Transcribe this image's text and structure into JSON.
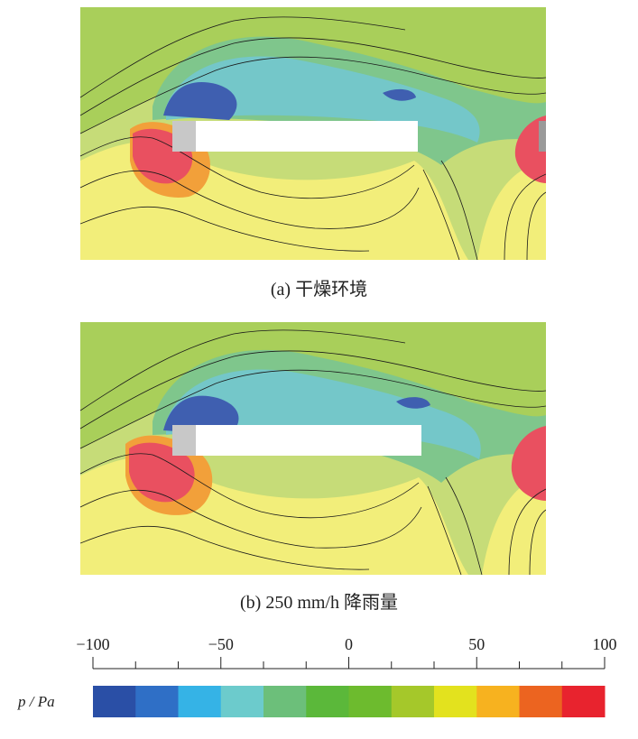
{
  "panels": [
    {
      "caption": "(a)  干燥环境"
    },
    {
      "caption": "(b)  250 mm/h 降雨量"
    }
  ],
  "colorbar": {
    "label": "p / Pa",
    "ticks": [
      "−100",
      "−50",
      "0",
      "50",
      "100"
    ],
    "colors": [
      "#2a4fa6",
      "#2f6fc6",
      "#35b3e6",
      "#6ccbcc",
      "#6cbf7a",
      "#5bb83a",
      "#6dbb2e",
      "#a5c82a",
      "#e3e21e",
      "#f7b21f",
      "#ec6420",
      "#e8232e"
    ]
  },
  "contour_colors": {
    "far_field": "#c6dc78",
    "upper_field": "#a9cf5a",
    "wake_band": "#7fc68c",
    "wake_inner": "#74c7c9",
    "suction": "#3f5fb0",
    "stagnation_rim": "#f2a03a",
    "stagnation": "#e95060",
    "lower_field": "#f2ee7a",
    "body": "#ffffff"
  }
}
